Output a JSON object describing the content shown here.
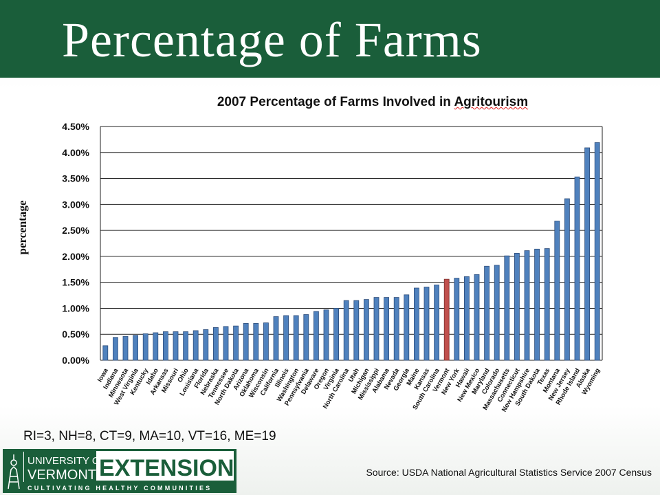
{
  "slide": {
    "title": "Percentage of Farms",
    "note": "RI=3, NH=8, CT=9, MA=10, VT=16, ME=19",
    "source": "Source:  USDA National Agricultural Statistics Service 2007 Census"
  },
  "logo": {
    "line1": "UNIVERSITY OF",
    "line2": "VERMONT",
    "word": "EXTENSION",
    "tagline": "CULTIVATING HEALTHY COMMUNITIES"
  },
  "colors": {
    "header": "#1a5e3a",
    "bar": "#4f81bd",
    "bar_stroke": "#2e4d7a",
    "highlight_bar": "#c0504d",
    "highlight_stroke": "#7a2b29",
    "logo_green": "#1a5e3a"
  },
  "chart_data": {
    "type": "bar",
    "title_prefix": "2007 Percentage of Farms Involved in ",
    "title_word": "Agritourism",
    "ylabel": "percentage",
    "xlabel": "",
    "ylim": [
      0,
      4.5
    ],
    "yticks": [
      "0.00%",
      "0.50%",
      "1.00%",
      "1.50%",
      "2.00%",
      "2.50%",
      "3.00%",
      "3.50%",
      "4.00%",
      "4.50%"
    ],
    "grid": true,
    "legend": "none",
    "highlight": "Vermont",
    "categories": [
      "Iowa",
      "Indiana",
      "Minnesota",
      "West Virginia",
      "Kentucky",
      "Idaho",
      "Arkansas",
      "Missouri",
      "Ohio",
      "Louisiana",
      "Florida",
      "Nebraska",
      "Tennessee",
      "North Dakota",
      "Arizona",
      "Oklahoma",
      "Wisconsin",
      "California",
      "Illinois",
      "Washington",
      "Pennsylvania",
      "Delaware",
      "Oregon",
      "Virginia",
      "North Carolina",
      "Utah",
      "Michigan",
      "Mississippi",
      "Alabama",
      "Nevada",
      "Georgia",
      "Maine",
      "Kansas",
      "South Carolina",
      "Vermont",
      "New York",
      "Hawaii",
      "New Mexico",
      "Maryland",
      "Colorado",
      "Massachusetts",
      "Connecticut",
      "New Hampshire",
      "South Dakota",
      "Texas",
      "Montana",
      "New Jersey",
      "Rhode Island",
      "Alaska",
      "Wyoming"
    ],
    "values": [
      0.28,
      0.44,
      0.46,
      0.48,
      0.51,
      0.53,
      0.55,
      0.55,
      0.55,
      0.57,
      0.59,
      0.63,
      0.65,
      0.66,
      0.71,
      0.71,
      0.72,
      0.84,
      0.86,
      0.86,
      0.88,
      0.94,
      0.97,
      1.0,
      1.15,
      1.15,
      1.17,
      1.21,
      1.21,
      1.21,
      1.26,
      1.39,
      1.41,
      1.45,
      1.56,
      1.58,
      1.61,
      1.65,
      1.81,
      1.83,
      2.01,
      2.06,
      2.11,
      2.14,
      2.15,
      2.68,
      3.11,
      3.53,
      4.09,
      4.19
    ]
  }
}
